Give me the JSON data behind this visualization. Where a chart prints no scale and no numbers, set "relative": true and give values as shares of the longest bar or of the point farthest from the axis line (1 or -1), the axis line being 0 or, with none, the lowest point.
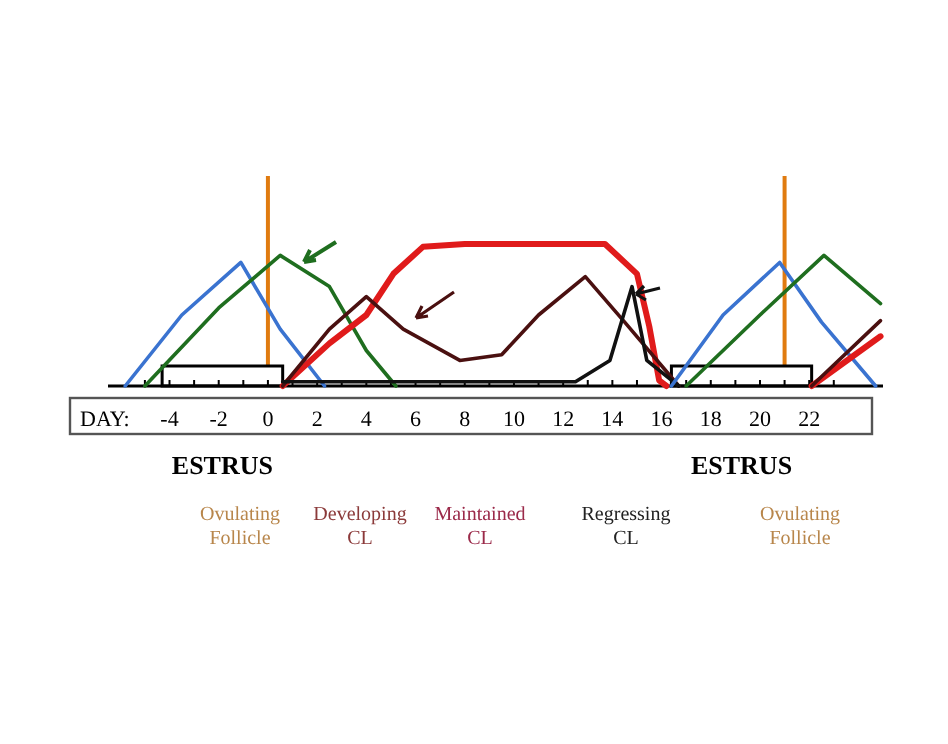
{
  "chart_data": {
    "type": "line",
    "relative": true,
    "xlabel": "DAY:",
    "xlim": [
      -6.5,
      25
    ],
    "xticks": [
      {
        "value": -5,
        "label": null
      },
      -4,
      {
        "value": -3,
        "label": null
      },
      -2,
      {
        "value": -1,
        "label": null
      },
      0,
      {
        "value": 1,
        "label": null
      },
      2,
      {
        "value": 3,
        "label": null
      },
      4,
      {
        "value": 5,
        "label": null
      },
      6,
      {
        "value": 7,
        "label": null
      },
      8,
      {
        "value": 9,
        "label": null
      },
      10,
      {
        "value": 11,
        "label": null
      },
      12,
      {
        "value": 13,
        "label": null
      },
      14,
      {
        "value": 15,
        "label": null
      },
      16,
      {
        "value": 17,
        "label": null
      },
      18,
      {
        "value": 19,
        "label": null
      },
      20,
      {
        "value": 21,
        "label": null
      },
      22,
      {
        "value": 23,
        "label": null
      }
    ],
    "grid": false,
    "line_style": "solid",
    "marker": "none",
    "series": [
      {
        "color": "#3a73d0",
        "x": [
          -5.8,
          -3.5,
          -1.1,
          0.5,
          2.3
        ],
        "values": [
          0,
          0.5,
          0.87,
          0.4,
          0
        ]
      },
      {
        "color": "#1f6e1f",
        "x": [
          -5,
          -2,
          0.5,
          2.5,
          4,
          5.2
        ],
        "values": [
          0,
          0.55,
          0.92,
          0.7,
          0.25,
          0
        ]
      },
      {
        "color": "#e01b1b",
        "x": [
          0.6,
          2.5,
          4,
          5.1,
          6.3,
          8,
          13.7,
          15,
          15.5,
          15.9,
          16.2
        ],
        "values": [
          0,
          0.3,
          0.5,
          0.79,
          0.98,
          1,
          1,
          0.79,
          0.42,
          0.04,
          0
        ],
        "line_style": "solid"
      },
      {
        "color": "#4a1010",
        "x": [
          0.6,
          2.5,
          4,
          5.5,
          7.8,
          9.5,
          11,
          12.9,
          14.5,
          16.7
        ],
        "values": [
          0,
          0.4,
          0.63,
          0.4,
          0.18,
          0.22,
          0.5,
          0.77,
          0.45,
          0
        ]
      },
      {
        "color": "#111111",
        "x": [
          0.6,
          12.5,
          13.9,
          14.8,
          15.4,
          16.7
        ],
        "values": [
          0.03,
          0.03,
          0.18,
          0.7,
          0.18,
          0
        ]
      },
      {
        "color": "#3a73d0",
        "x": [
          16.4,
          18.5,
          20.8,
          22.5,
          24.7
        ],
        "values": [
          0,
          0.5,
          0.87,
          0.45,
          0
        ]
      },
      {
        "color": "#1f6e1f",
        "x": [
          17,
          20,
          22.6,
          24.9
        ],
        "values": [
          0,
          0.5,
          0.92,
          0.58
        ]
      },
      {
        "color": "#e01b1b",
        "x": [
          22.1,
          24.9
        ],
        "values": [
          0,
          0.35
        ]
      },
      {
        "color": "#4a1010",
        "x": [
          22.1,
          24.9
        ],
        "values": [
          0,
          0.46
        ]
      }
    ],
    "ref_lines": [
      {
        "axis": "x",
        "value": 0,
        "color": "#e07b10"
      },
      {
        "axis": "x",
        "value": 21,
        "color": "#e07b10"
      }
    ],
    "bands": [
      {
        "axis": "x",
        "from": -4.3,
        "to": 0.6,
        "label": "ESTRUS"
      },
      {
        "axis": "x",
        "from": 16.4,
        "to": 22.1,
        "label": "ESTRUS"
      }
    ],
    "annotations": [
      "Ovulating\nFollicle",
      "Developing\nCL",
      "Maintained\nCL",
      "Regressing\nCL",
      "Ovulating\nFollicle"
    ]
  }
}
